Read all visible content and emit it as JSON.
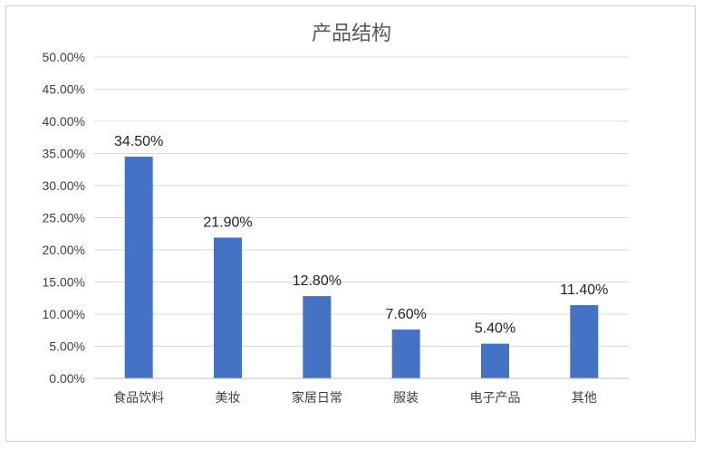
{
  "chart_data": {
    "type": "bar",
    "title": "产品结构",
    "xlabel": "",
    "ylabel": "",
    "categories": [
      "食品饮料",
      "美妆",
      "家居日常",
      "服装",
      "电子产品",
      "其他"
    ],
    "values": [
      34.5,
      21.9,
      12.8,
      7.6,
      5.4,
      11.4
    ],
    "value_labels": [
      "34.50%",
      "21.90%",
      "12.80%",
      "7.60%",
      "5.40%",
      "11.40%"
    ],
    "ylim": [
      0,
      50
    ],
    "y_ticks": [
      0,
      5,
      10,
      15,
      20,
      25,
      30,
      35,
      40,
      45,
      50
    ],
    "y_tick_labels": [
      "0.00%",
      "5.00%",
      "10.00%",
      "15.00%",
      "20.00%",
      "25.00%",
      "30.00%",
      "35.00%",
      "40.00%",
      "45.00%",
      "50.00%"
    ],
    "grid": true,
    "legend": "none",
    "bar_color": "#4472c4"
  }
}
